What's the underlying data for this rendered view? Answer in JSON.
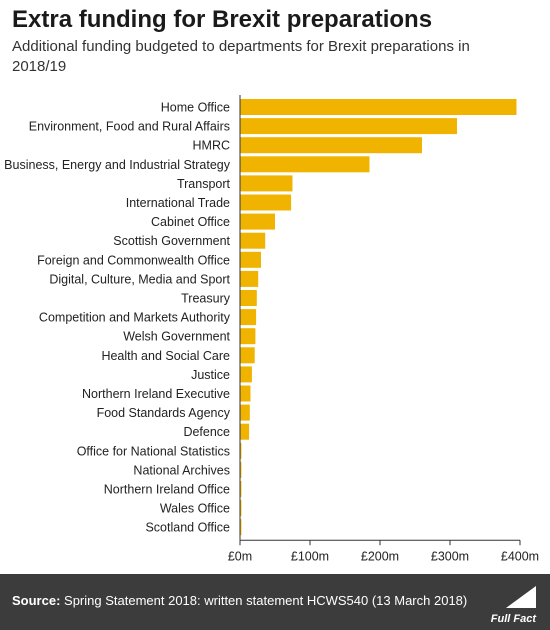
{
  "header": {
    "title": "Extra funding for Brexit preparations",
    "subtitle": "Additional funding budgeted to departments for Brexit preparations in 2018/19"
  },
  "footer": {
    "source_label": "Source:",
    "source_text": "Spring Statement 2018: written statement HCWS540 (13 March 2018)",
    "logo_text": "Full Fact"
  },
  "colors": {
    "bar": "#f0b400",
    "axis": "#333333",
    "footer_bg": "#3c3c3c"
  },
  "chart_data": {
    "type": "bar",
    "orientation": "horizontal",
    "categories": [
      "Home Office",
      "Environment, Food and Rural Affairs",
      "HMRC",
      "Business, Energy and Industrial Strategy",
      "Transport",
      "International Trade",
      "Cabinet Office",
      "Scottish Government",
      "Foreign and Commonwealth Office",
      "Digital, Culture, Media and Sport",
      "Treasury",
      "Competition and Markets Authority",
      "Welsh Government",
      "Health and Social Care",
      "Justice",
      "Northern Ireland Executive",
      "Food Standards Agency",
      "Defence",
      "Office for National Statistics",
      "National Archives",
      "Northern Ireland Office",
      "Wales Office",
      "Scotland Office"
    ],
    "values": [
      395,
      310,
      260,
      185,
      75,
      73,
      50,
      36,
      30,
      26,
      24,
      23,
      22,
      21,
      17,
      15,
      14,
      13,
      2,
      2,
      2,
      2,
      2
    ],
    "unit": "£m",
    "xlim": [
      0,
      400
    ],
    "xticks": [
      0,
      100,
      200,
      300,
      400
    ],
    "xtick_labels": [
      "£0m",
      "£100m",
      "£200m",
      "£300m",
      "£400m"
    ],
    "grid": false
  }
}
